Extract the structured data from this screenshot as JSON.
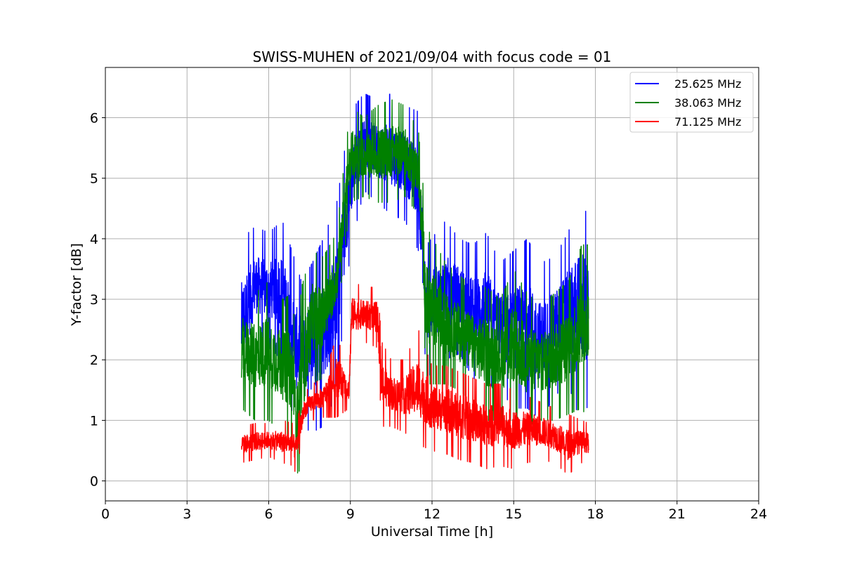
{
  "chart_data": {
    "type": "line",
    "title": "SWISS-MUHEN of 2021/09/04 with focus code = 01",
    "xlabel": "Universal Time [h]",
    "ylabel": "Y-factor [dB]",
    "xlim": [
      0,
      24
    ],
    "ylim": [
      -0.33,
      6.83
    ],
    "x_ticks": [
      0,
      3,
      6,
      9,
      12,
      15,
      18,
      21,
      24
    ],
    "y_ticks": [
      0,
      1,
      2,
      3,
      4,
      5,
      6
    ],
    "grid": true,
    "legend_position": "top-right",
    "series": [
      {
        "name": "25.625 MHz",
        "color": "#0000ff",
        "style": "noisy",
        "x": [
          5.0,
          5.5,
          6.0,
          6.5,
          7.0,
          7.2,
          7.6,
          8.0,
          8.5,
          9.0,
          9.5,
          10.0,
          10.5,
          11.0,
          11.5,
          11.8,
          12.5,
          13.0,
          13.5,
          14.0,
          14.5,
          15.0,
          15.5,
          16.0,
          16.5,
          17.0,
          17.5,
          17.75
        ],
        "min": [
          1.1,
          2.3,
          2.2,
          2.0,
          0.8,
          0.9,
          0.8,
          0.9,
          1.5,
          3.8,
          4.8,
          4.6,
          4.4,
          4.3,
          3.8,
          1.7,
          2.0,
          2.1,
          1.7,
          1.6,
          1.5,
          1.2,
          1.2,
          1.0,
          1.4,
          1.6,
          0.9,
          1.3
        ],
        "max": [
          4.0,
          4.2,
          4.1,
          4.3,
          3.6,
          3.3,
          3.6,
          4.0,
          4.6,
          6.1,
          6.4,
          6.3,
          6.4,
          6.2,
          6.1,
          3.9,
          4.3,
          4.0,
          3.9,
          4.1,
          3.6,
          3.8,
          4.0,
          3.6,
          3.7,
          4.1,
          4.8,
          4.2
        ]
      },
      {
        "name": "38.063 MHz",
        "color": "#008000",
        "style": "noisy",
        "x": [
          5.0,
          5.5,
          6.0,
          6.5,
          6.9,
          7.0,
          7.2,
          7.6,
          8.0,
          8.5,
          9.0,
          9.5,
          10.0,
          10.5,
          11.0,
          11.5,
          11.8,
          12.5,
          13.0,
          13.5,
          14.0,
          14.5,
          15.0,
          15.5,
          16.0,
          16.5,
          17.0,
          17.5,
          17.75
        ],
        "min": [
          1.2,
          1.0,
          1.0,
          0.8,
          0.5,
          0.1,
          0.2,
          1.6,
          1.7,
          2.6,
          4.6,
          4.7,
          4.6,
          4.6,
          4.7,
          4.4,
          1.6,
          1.6,
          1.5,
          1.3,
          1.0,
          1.0,
          1.0,
          0.9,
          1.0,
          1.0,
          1.1,
          1.2,
          1.0
        ],
        "max": [
          3.2,
          3.1,
          3.3,
          3.0,
          3.1,
          1.8,
          3.2,
          3.8,
          3.7,
          4.1,
          6.2,
          6.0,
          6.2,
          6.3,
          6.2,
          5.8,
          4.2,
          3.6,
          3.4,
          3.2,
          3.2,
          3.0,
          3.5,
          3.1,
          2.9,
          3.1,
          3.3,
          3.9,
          3.9
        ]
      },
      {
        "name": "71.125 MHz",
        "color": "#ff0000",
        "style": "noisy",
        "x": [
          5.0,
          5.5,
          6.0,
          6.5,
          6.9,
          7.0,
          7.3,
          7.6,
          8.0,
          8.5,
          8.95,
          9.05,
          9.5,
          10.0,
          10.15,
          10.5,
          11.0,
          11.5,
          12.0,
          12.5,
          13.0,
          13.5,
          14.0,
          14.5,
          15.0,
          15.5,
          16.0,
          16.5,
          17.0,
          17.5,
          17.75
        ],
        "min": [
          0.3,
          0.35,
          0.4,
          0.3,
          0.25,
          0.1,
          0.9,
          1.0,
          1.05,
          1.05,
          1.2,
          2.2,
          2.3,
          2.2,
          0.9,
          0.9,
          0.8,
          0.6,
          0.5,
          0.45,
          0.35,
          0.3,
          0.2,
          0.25,
          0.2,
          0.3,
          0.35,
          0.3,
          0.1,
          0.3,
          0.3
        ],
        "max": [
          0.9,
          0.95,
          0.95,
          1.0,
          0.95,
          0.95,
          1.45,
          1.6,
          1.7,
          2.4,
          1.8,
          3.3,
          3.2,
          3.2,
          2.3,
          2.0,
          2.0,
          2.5,
          1.9,
          1.9,
          1.8,
          1.7,
          1.6,
          1.6,
          1.5,
          1.4,
          1.3,
          1.2,
          1.1,
          1.0,
          0.95
        ]
      }
    ]
  }
}
